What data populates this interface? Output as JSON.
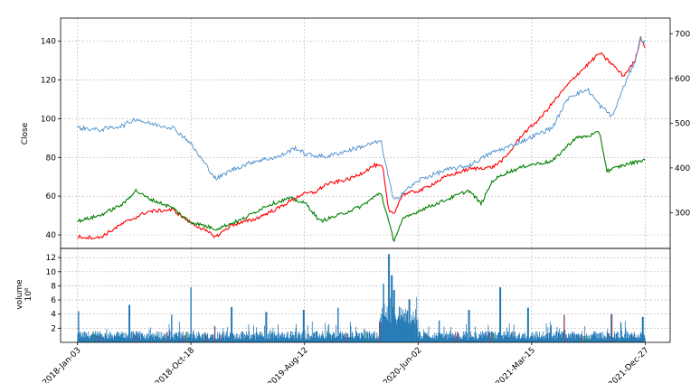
{
  "chart_data": [
    {
      "type": "line",
      "ylabel": "Close",
      "ylim_left": [
        33,
        152
      ],
      "ylim_right": [
        220,
        735
      ],
      "yticks_left": [
        "40",
        "60",
        "80",
        "100",
        "120",
        "140"
      ],
      "yticks_right": [
        "300",
        "400",
        "500",
        "600",
        "700"
      ],
      "grid": true,
      "series": [
        {
          "axis": "left",
          "color": "#ff0000",
          "points": [
            [
              "2018-01-03",
              39
            ],
            [
              "2018-03-01",
              38.5
            ],
            [
              "2018-05-01",
              46
            ],
            [
              "2018-07-02",
              52
            ],
            [
              "2018-09-04",
              53
            ],
            [
              "2018-10-15",
              47
            ],
            [
              "2018-12-24",
              39
            ],
            [
              "2019-02-01",
              45
            ],
            [
              "2019-04-01",
              48
            ],
            [
              "2019-06-03",
              54
            ],
            [
              "2019-08-01",
              61
            ],
            [
              "2019-09-03",
              62
            ],
            [
              "2019-10-01",
              66
            ],
            [
              "2019-12-02",
              69
            ],
            [
              "2020-01-02",
              72
            ],
            [
              "2020-02-03",
              76
            ],
            [
              "2020-02-24",
              75
            ],
            [
              "2020-03-09",
              53
            ],
            [
              "2020-03-23",
              51
            ],
            [
              "2020-04-15",
              61
            ],
            [
              "2020-06-01",
              63
            ],
            [
              "2020-08-03",
              70
            ],
            [
              "2020-10-01",
              74
            ],
            [
              "2020-12-01",
              75
            ],
            [
              "2021-01-04",
              80
            ],
            [
              "2021-02-16",
              92
            ],
            [
              "2021-04-01",
              100
            ],
            [
              "2021-05-03",
              108
            ],
            [
              "2021-06-01",
              115
            ],
            [
              "2021-07-01",
              122
            ],
            [
              "2021-08-02",
              128
            ],
            [
              "2021-09-01",
              134
            ],
            [
              "2021-10-04",
              128
            ],
            [
              "2021-11-01",
              122
            ],
            [
              "2021-12-01",
              130
            ],
            [
              "2021-12-15",
              142
            ],
            [
              "2021-12-27",
              137
            ]
          ]
        },
        {
          "axis": "left",
          "color": "#008000",
          "points": [
            [
              "2018-01-03",
              47
            ],
            [
              "2018-03-01",
              50
            ],
            [
              "2018-05-01",
              56
            ],
            [
              "2018-06-01",
              63
            ],
            [
              "2018-07-02",
              59
            ],
            [
              "2018-09-04",
              54
            ],
            [
              "2018-10-15",
              47
            ],
            [
              "2018-12-24",
              43
            ],
            [
              "2019-03-01",
              48
            ],
            [
              "2019-05-01",
              55
            ],
            [
              "2019-07-01",
              59
            ],
            [
              "2019-08-12",
              56
            ],
            [
              "2019-09-16",
              47
            ],
            [
              "2019-11-01",
              50
            ],
            [
              "2020-01-02",
              55
            ],
            [
              "2020-02-19",
              62
            ],
            [
              "2020-03-23",
              37
            ],
            [
              "2020-04-15",
              48
            ],
            [
              "2020-06-01",
              53
            ],
            [
              "2020-08-03",
              58
            ],
            [
              "2020-10-01",
              63
            ],
            [
              "2020-11-02",
              56
            ],
            [
              "2020-12-01",
              68
            ],
            [
              "2021-01-04",
              72
            ],
            [
              "2021-03-01",
              76
            ],
            [
              "2021-05-03",
              78
            ],
            [
              "2021-06-01",
              84
            ],
            [
              "2021-07-01",
              90
            ],
            [
              "2021-08-02",
              91
            ],
            [
              "2021-09-01",
              93
            ],
            [
              "2021-09-20",
              73
            ],
            [
              "2021-11-01",
              76
            ],
            [
              "2021-12-27",
              79
            ]
          ]
        },
        {
          "axis": "right",
          "color": "#4a8fcc",
          "points": [
            [
              "2018-01-03",
              490
            ],
            [
              "2018-03-01",
              485
            ],
            [
              "2018-05-01",
              495
            ],
            [
              "2018-06-01",
              510
            ],
            [
              "2018-07-02",
              500
            ],
            [
              "2018-09-04",
              490
            ],
            [
              "2018-10-15",
              460
            ],
            [
              "2018-12-24",
              375
            ],
            [
              "2019-02-01",
              395
            ],
            [
              "2019-04-01",
              415
            ],
            [
              "2019-06-03",
              425
            ],
            [
              "2019-07-15",
              445
            ],
            [
              "2019-08-12",
              430
            ],
            [
              "2019-10-01",
              425
            ],
            [
              "2019-12-02",
              440
            ],
            [
              "2020-02-19",
              460
            ],
            [
              "2020-03-23",
              325
            ],
            [
              "2020-04-15",
              345
            ],
            [
              "2020-06-01",
              375
            ],
            [
              "2020-08-03",
              395
            ],
            [
              "2020-10-01",
              405
            ],
            [
              "2020-12-01",
              435
            ],
            [
              "2021-01-04",
              445
            ],
            [
              "2021-03-01",
              465
            ],
            [
              "2021-05-03",
              490
            ],
            [
              "2021-06-15",
              560
            ],
            [
              "2021-08-02",
              575
            ],
            [
              "2021-09-01",
              540
            ],
            [
              "2021-10-04",
              515
            ],
            [
              "2021-11-01",
              580
            ],
            [
              "2021-12-01",
              640
            ],
            [
              "2021-12-15",
              690
            ],
            [
              "2021-12-27",
              680
            ]
          ]
        }
      ]
    },
    {
      "type": "bar",
      "ylabel": "volume",
      "yunit": "10⁶",
      "ylim": [
        0,
        13.3
      ],
      "yticks": [
        "2",
        "4",
        "6",
        "8",
        "10",
        "12"
      ],
      "grid": true,
      "xticks": [
        "2018-Jan-03",
        "2018-Oct-18",
        "2019-Aug-12",
        "2020-Jun-02",
        "2021-Mar-15",
        "2021-Dec-27"
      ],
      "xlim": [
        "2018-01-03",
        "2021-12-27"
      ],
      "bar_color": "#1f77b4",
      "spikes": [
        [
          "2018-01-05",
          4.4
        ],
        [
          "2018-05-15",
          5.3
        ],
        [
          "2018-09-01",
          3.9
        ],
        [
          "2018-10-20",
          7.8
        ],
        [
          "2019-02-01",
          5.0
        ],
        [
          "2019-05-01",
          4.3
        ],
        [
          "2019-08-05",
          4.6
        ],
        [
          "2019-11-01",
          4.9
        ],
        [
          "2020-02-25",
          8.3
        ],
        [
          "2020-03-10",
          12.5
        ],
        [
          "2020-03-17",
          9.5
        ],
        [
          "2020-03-23",
          7.4
        ],
        [
          "2020-05-01",
          6.1
        ],
        [
          "2020-10-01",
          4.6
        ],
        [
          "2020-12-20",
          7.8
        ],
        [
          "2021-03-01",
          4.9
        ],
        [
          "2021-06-01",
          3.9
        ],
        [
          "2021-10-01",
          4.0
        ],
        [
          "2021-12-20",
          3.6
        ]
      ]
    }
  ]
}
